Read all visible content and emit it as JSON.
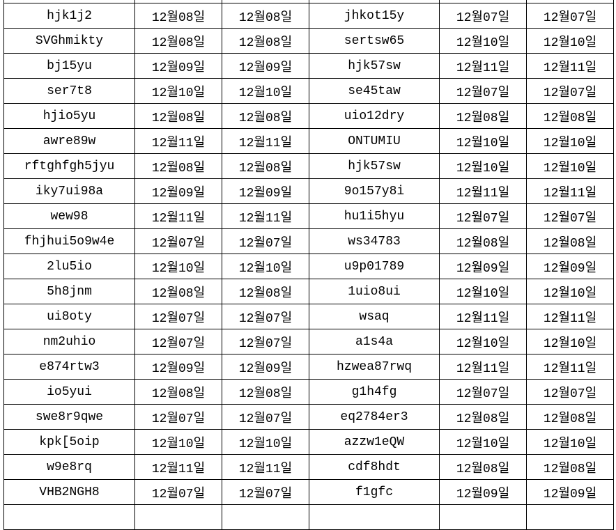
{
  "rows": [
    [
      "hjk1j2",
      "12월08일",
      "12월08일",
      "jhkot15y",
      "12월07일",
      "12월07일"
    ],
    [
      "SVGhmikty",
      "12월08일",
      "12월08일",
      "sertsw65",
      "12월10일",
      "12월10일"
    ],
    [
      "bj15yu",
      "12월09일",
      "12월09일",
      "hjk57sw",
      "12월11일",
      "12월11일"
    ],
    [
      "ser7t8",
      "12월10일",
      "12월10일",
      "se45taw",
      "12월07일",
      "12월07일"
    ],
    [
      "hjio5yu",
      "12월08일",
      "12월08일",
      "uio12dry",
      "12월08일",
      "12월08일"
    ],
    [
      "awre89w",
      "12월11일",
      "12월11일",
      "ONTUMIU",
      "12월10일",
      "12월10일"
    ],
    [
      "rftghfgh5jyu",
      "12월08일",
      "12월08일",
      "hjk57sw",
      "12월10일",
      "12월10일"
    ],
    [
      "iky7ui98a",
      "12월09일",
      "12월09일",
      "9o157y8i",
      "12월11일",
      "12월11일"
    ],
    [
      "wew98",
      "12월11일",
      "12월11일",
      "hu1i5hyu",
      "12월07일",
      "12월07일"
    ],
    [
      "fhjhui5o9w4e",
      "12월07일",
      "12월07일",
      "ws34783",
      "12월08일",
      "12월08일"
    ],
    [
      "2lu5io",
      "12월10일",
      "12월10일",
      "u9p01789",
      "12월09일",
      "12월09일"
    ],
    [
      "5h8jnm",
      "12월08일",
      "12월08일",
      "1uio8ui",
      "12월10일",
      "12월10일"
    ],
    [
      "ui8oty",
      "12월07일",
      "12월07일",
      "wsaq",
      "12월11일",
      "12월11일"
    ],
    [
      "nm2uhio",
      "12월07일",
      "12월07일",
      "a1s4a",
      "12월10일",
      "12월10일"
    ],
    [
      "e874rtw3",
      "12월09일",
      "12월09일",
      "hzwea87rwq",
      "12월11일",
      "12월11일"
    ],
    [
      "io5yui",
      "12월08일",
      "12월08일",
      "g1h4fg",
      "12월07일",
      "12월07일"
    ],
    [
      "swe8r9qwe",
      "12월07일",
      "12월07일",
      "eq2784er3",
      "12월08일",
      "12월08일"
    ],
    [
      "kpk[5oip",
      "12월10일",
      "12월10일",
      "azzw1eQW",
      "12월10일",
      "12월10일"
    ],
    [
      "w9e8rq",
      "12월11일",
      "12월11일",
      "cdf8hdt",
      "12월08일",
      "12월08일"
    ],
    [
      "VHB2NGH8",
      "12월07일",
      "12월07일",
      "f1gfc",
      "12월09일",
      "12월09일"
    ]
  ]
}
